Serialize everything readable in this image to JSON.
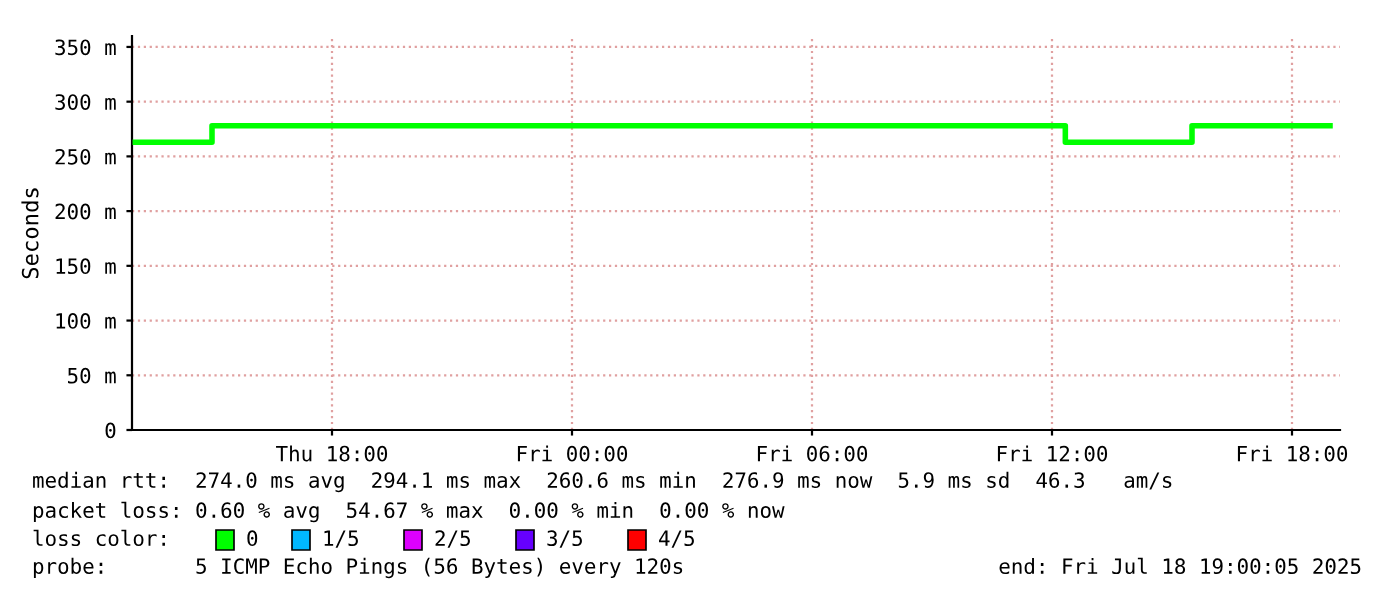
{
  "chart_data": {
    "type": "line",
    "ylabel": "Seconds",
    "x": [
      "2025-07-17T13:05",
      "2025-07-17T15:00",
      "2025-07-17T15:00",
      "2025-07-18T12:20",
      "2025-07-18T12:20",
      "2025-07-18T15:30",
      "2025-07-18T15:30",
      "2025-07-18T18:57"
    ],
    "series": [
      {
        "name": "0",
        "color": "#00ff00",
        "values": [
          263,
          263,
          278,
          278,
          263,
          263,
          278,
          278
        ]
      },
      {
        "name": "1/5",
        "color": "#00b8ff",
        "values": [
          null,
          null,
          null,
          null,
          null,
          null,
          null,
          null
        ]
      },
      {
        "name": "2/5",
        "color": "#dd00ff",
        "values": [
          null,
          null,
          null,
          null,
          null,
          null,
          null,
          null
        ]
      },
      {
        "name": "3/5",
        "color": "#6600ff",
        "values": [
          null,
          null,
          null,
          null,
          null,
          null,
          null,
          null
        ]
      },
      {
        "name": "4/5",
        "color": "#ff0000",
        "values": [
          null,
          null,
          null,
          null,
          null,
          null,
          null,
          null
        ]
      }
    ],
    "legend": "bottom",
    "legend_title": "loss color:",
    "xlim": [
      "2025-07-17T13:00",
      "2025-07-18T19:12"
    ],
    "xticks": [
      {
        "value": "2025-07-17T18:00",
        "label": "Thu 18:00"
      },
      {
        "value": "2025-07-18T00:00",
        "label": "Fri 00:00"
      },
      {
        "value": "2025-07-18T06:00",
        "label": "Fri 06:00"
      },
      {
        "value": "2025-07-18T12:00",
        "label": "Fri 12:00"
      },
      {
        "value": "2025-07-18T18:00",
        "label": "Fri 18:00"
      }
    ],
    "ylim": [
      0,
      360
    ],
    "yticks": [
      0,
      {
        "value": 50,
        "label": "50 m"
      },
      {
        "value": 100,
        "label": "100 m"
      },
      {
        "value": 150,
        "label": "150 m"
      },
      {
        "value": 200,
        "label": "200 m"
      },
      {
        "value": 250,
        "label": "250 m"
      },
      {
        "value": 300,
        "label": "300 m"
      },
      {
        "value": 350,
        "label": "350 m"
      }
    ],
    "grid": true,
    "line_style": "solid",
    "marker": "none",
    "annotations": [
      "median rtt:  274.0 ms avg  294.1 ms max  260.6 ms min  276.9 ms now  5.9 ms sd  46.3   am/s",
      "packet loss: 0.60 % avg  54.67 % max  0.00 % min  0.00 % now",
      "probe:       5 ICMP Echo Pings (56 Bytes) every 120s",
      "end: Fri Jul 18 19:00:05 2025"
    ]
  }
}
